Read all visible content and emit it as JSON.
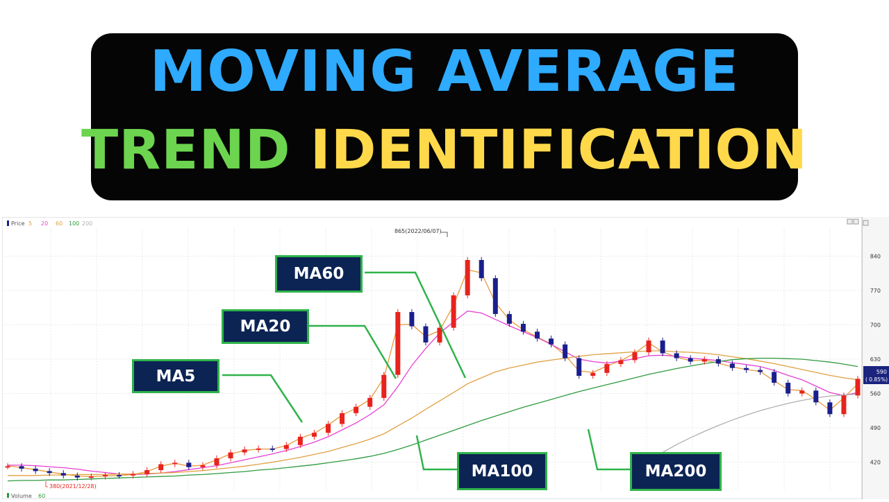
{
  "headline": {
    "line1": "MOVING AVERAGE",
    "line2_green": "TREND",
    "line2_yellow": "IDENTIFICATION"
  },
  "legend": {
    "price": "Price",
    "ma5": "5",
    "ma20": "20",
    "ma60": "60",
    "ma100": "100",
    "ma200": "200",
    "volume": "Volume",
    "volume_ma": "60"
  },
  "annotations": {
    "high": "865(2022/06/07)",
    "low": "380(2021/12/28)"
  },
  "price_tag": {
    "value": "590",
    "change": "( 0.85%)"
  },
  "labels": {
    "ma5": "MA5",
    "ma20": "MA20",
    "ma60": "MA60",
    "ma100": "MA100",
    "ma200": "MA200"
  },
  "colors": {
    "title_blue": "#2eaaff",
    "title_green": "#6cd44f",
    "title_yellow": "#ffd94a",
    "label_bg": "#0c2454",
    "label_border": "#2fb34a",
    "candle_up": "#e8231d",
    "candle_down": "#1a1f8c",
    "ma5": "#e89a3a",
    "ma20": "#e63fd2",
    "ma60": "#e0a040",
    "ma100": "#2e9a3e",
    "ma200": "#b0b0b0"
  },
  "chart_data": {
    "type": "line",
    "title": "",
    "ylim": [
      380,
      880
    ],
    "y_ticks": [
      "840",
      "770",
      "700",
      "630",
      "560",
      "490",
      "420"
    ],
    "grid": true,
    "annotations": [
      "865(2022/06/07)",
      "380(2021/12/28)"
    ],
    "x": [
      0,
      1,
      2,
      3,
      4,
      5,
      6,
      7,
      8,
      9,
      10,
      11,
      12,
      13,
      14,
      15,
      16,
      17,
      18,
      19,
      20,
      21,
      22,
      23,
      24,
      25,
      26,
      27,
      28,
      29,
      30,
      31,
      32,
      33,
      34,
      35,
      36,
      37,
      38,
      39,
      40,
      41,
      42,
      43,
      44,
      45,
      46,
      47,
      48,
      49,
      50,
      51,
      52,
      53,
      54,
      55,
      56,
      57,
      58,
      59,
      60,
      61
    ],
    "series": [
      {
        "name": "Price",
        "values": [
          412,
          407,
          402,
          398,
          393,
          389,
          391,
          394,
          393,
          396,
          404,
          416,
          419,
          410,
          414,
          428,
          440,
          446,
          448,
          447,
          455,
          472,
          480,
          498,
          520,
          533,
          551,
          598,
          726,
          697,
          664,
          694,
          760,
          832,
          795,
          722,
          702,
          686,
          672,
          660,
          632,
          596,
          602,
          620,
          628,
          644,
          668,
          642,
          632,
          625,
          630,
          621,
          612,
          608,
          604,
          582,
          560,
          566,
          542,
          518,
          556,
          590
        ]
      },
      {
        "name": "5",
        "values": [
          413,
          409,
          405,
          400,
          396,
          392,
          391,
          392,
          393,
          395,
          401,
          412,
          418,
          412,
          414,
          425,
          437,
          444,
          447,
          447,
          454,
          469,
          479,
          496,
          516,
          530,
          548,
          592,
          700,
          701,
          676,
          688,
          740,
          812,
          806,
          745,
          710,
          690,
          675,
          661,
          638,
          606,
          603,
          616,
          627,
          642,
          663,
          645,
          634,
          627,
          628,
          622,
          614,
          609,
          605,
          586,
          568,
          566,
          548,
          526,
          551,
          580
        ]
      },
      {
        "name": "20",
        "values": [
          414,
          414,
          413,
          411,
          409,
          406,
          402,
          399,
          396,
          395,
          396,
          398,
          401,
          405,
          409,
          413,
          419,
          425,
          431,
          437,
          444,
          452,
          461,
          472,
          486,
          500,
          517,
          537,
          574,
          617,
          652,
          683,
          706,
          728,
          724,
          711,
          698,
          686,
          674,
          660,
          645,
          630,
          625,
          622,
          626,
          631,
          637,
          638,
          636,
          632,
          630,
          627,
          623,
          619,
          615,
          607,
          597,
          588,
          575,
          562,
          556,
          562
        ]
      },
      {
        "name": "60",
        "values": [
          393,
          393,
          393,
          394,
          394,
          395,
          395,
          395,
          396,
          396,
          397,
          398,
          399,
          401,
          403,
          406,
          409,
          412,
          416,
          420,
          425,
          430,
          436,
          442,
          450,
          458,
          467,
          478,
          494,
          510,
          528,
          545,
          562,
          580,
          592,
          604,
          612,
          618,
          624,
          628,
          632,
          636,
          639,
          641,
          643,
          645,
          647,
          647,
          645,
          644,
          642,
          639,
          635,
          631,
          626,
          621,
          615,
          609,
          603,
          597,
          592,
          588
        ]
      },
      {
        "name": "100",
        "values": [
          382,
          383,
          383,
          384,
          384,
          385,
          386,
          387,
          388,
          389,
          390,
          391,
          392,
          394,
          395,
          397,
          399,
          401,
          404,
          406,
          409,
          412,
          415,
          419,
          423,
          427,
          432,
          438,
          446,
          455,
          465,
          475,
          485,
          495,
          505,
          514,
          523,
          532,
          540,
          548,
          556,
          564,
          571,
          578,
          585,
          592,
          599,
          605,
          611,
          616,
          621,
          625,
          629,
          631,
          632,
          632,
          631,
          630,
          627,
          624,
          620,
          615
        ]
      },
      {
        "name": "200",
        "values": [
          null,
          null,
          null,
          null,
          null,
          null,
          null,
          null,
          null,
          null,
          null,
          null,
          null,
          null,
          null,
          null,
          null,
          null,
          null,
          null,
          null,
          null,
          null,
          null,
          null,
          null,
          null,
          null,
          null,
          null,
          null,
          null,
          null,
          null,
          null,
          null,
          null,
          null,
          null,
          null,
          null,
          null,
          null,
          null,
          null,
          null,
          426,
          440,
          456,
          470,
          483,
          495,
          506,
          516,
          525,
          533,
          540,
          546,
          551,
          555,
          557,
          559
        ]
      }
    ]
  }
}
